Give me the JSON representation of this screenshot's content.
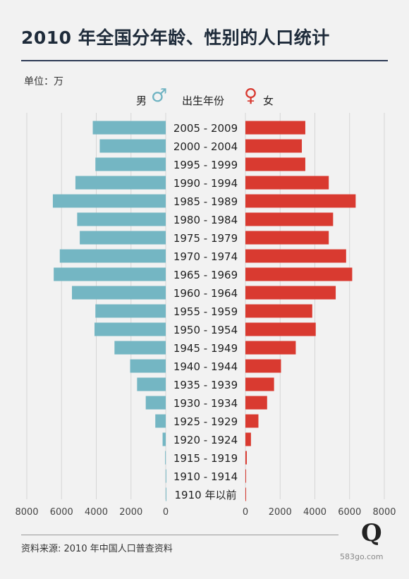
{
  "title": "2010 年全国分年龄、性别的人口统计",
  "unit_label": "单位：万",
  "legend": {
    "male_label": "男",
    "center_label": "出生年份",
    "female_label": "女",
    "male_icon": "male-symbol-icon",
    "female_icon": "female-symbol-icon"
  },
  "colors": {
    "male": "#74b6c3",
    "female": "#d93a30",
    "grid": "#d6d6d6"
  },
  "source": "资料来源: 2010 年中国人口普查资料",
  "watermark": "583go.com",
  "chart_data": {
    "type": "bar",
    "orientation": "horizontal-pyramid",
    "categories": [
      "2005 - 2009",
      "2000 - 2004",
      "1995 - 1999",
      "1990 - 1994",
      "1985 - 1989",
      "1980 - 1984",
      "1975 - 1979",
      "1970 - 1974",
      "1965 - 1969",
      "1960 - 1964",
      "1955 - 1959",
      "1950 - 1954",
      "1945 - 1949",
      "1940 - 1944",
      "1935 - 1939",
      "1930 - 1934",
      "1925 - 1929",
      "1920 - 1924",
      "1915 - 1919",
      "1910 - 1914",
      "1910 年以前"
    ],
    "series": [
      {
        "name": "男",
        "values": [
          4200,
          3800,
          4050,
          5200,
          6500,
          5100,
          4950,
          6100,
          6450,
          5400,
          4050,
          4100,
          2950,
          2050,
          1650,
          1150,
          600,
          180,
          35,
          5,
          1
        ]
      },
      {
        "name": "女",
        "values": [
          3450,
          3250,
          3450,
          4800,
          6350,
          5050,
          4800,
          5800,
          6150,
          5200,
          3850,
          4050,
          2900,
          2050,
          1650,
          1250,
          750,
          320,
          80,
          15,
          3
        ]
      }
    ],
    "xticks_left": [
      "8000",
      "6000",
      "4000",
      "2000",
      "0"
    ],
    "xticks_right": [
      "0",
      "2000",
      "4000",
      "6000",
      "8000"
    ],
    "xlim": [
      0,
      8000
    ],
    "grid": true
  }
}
